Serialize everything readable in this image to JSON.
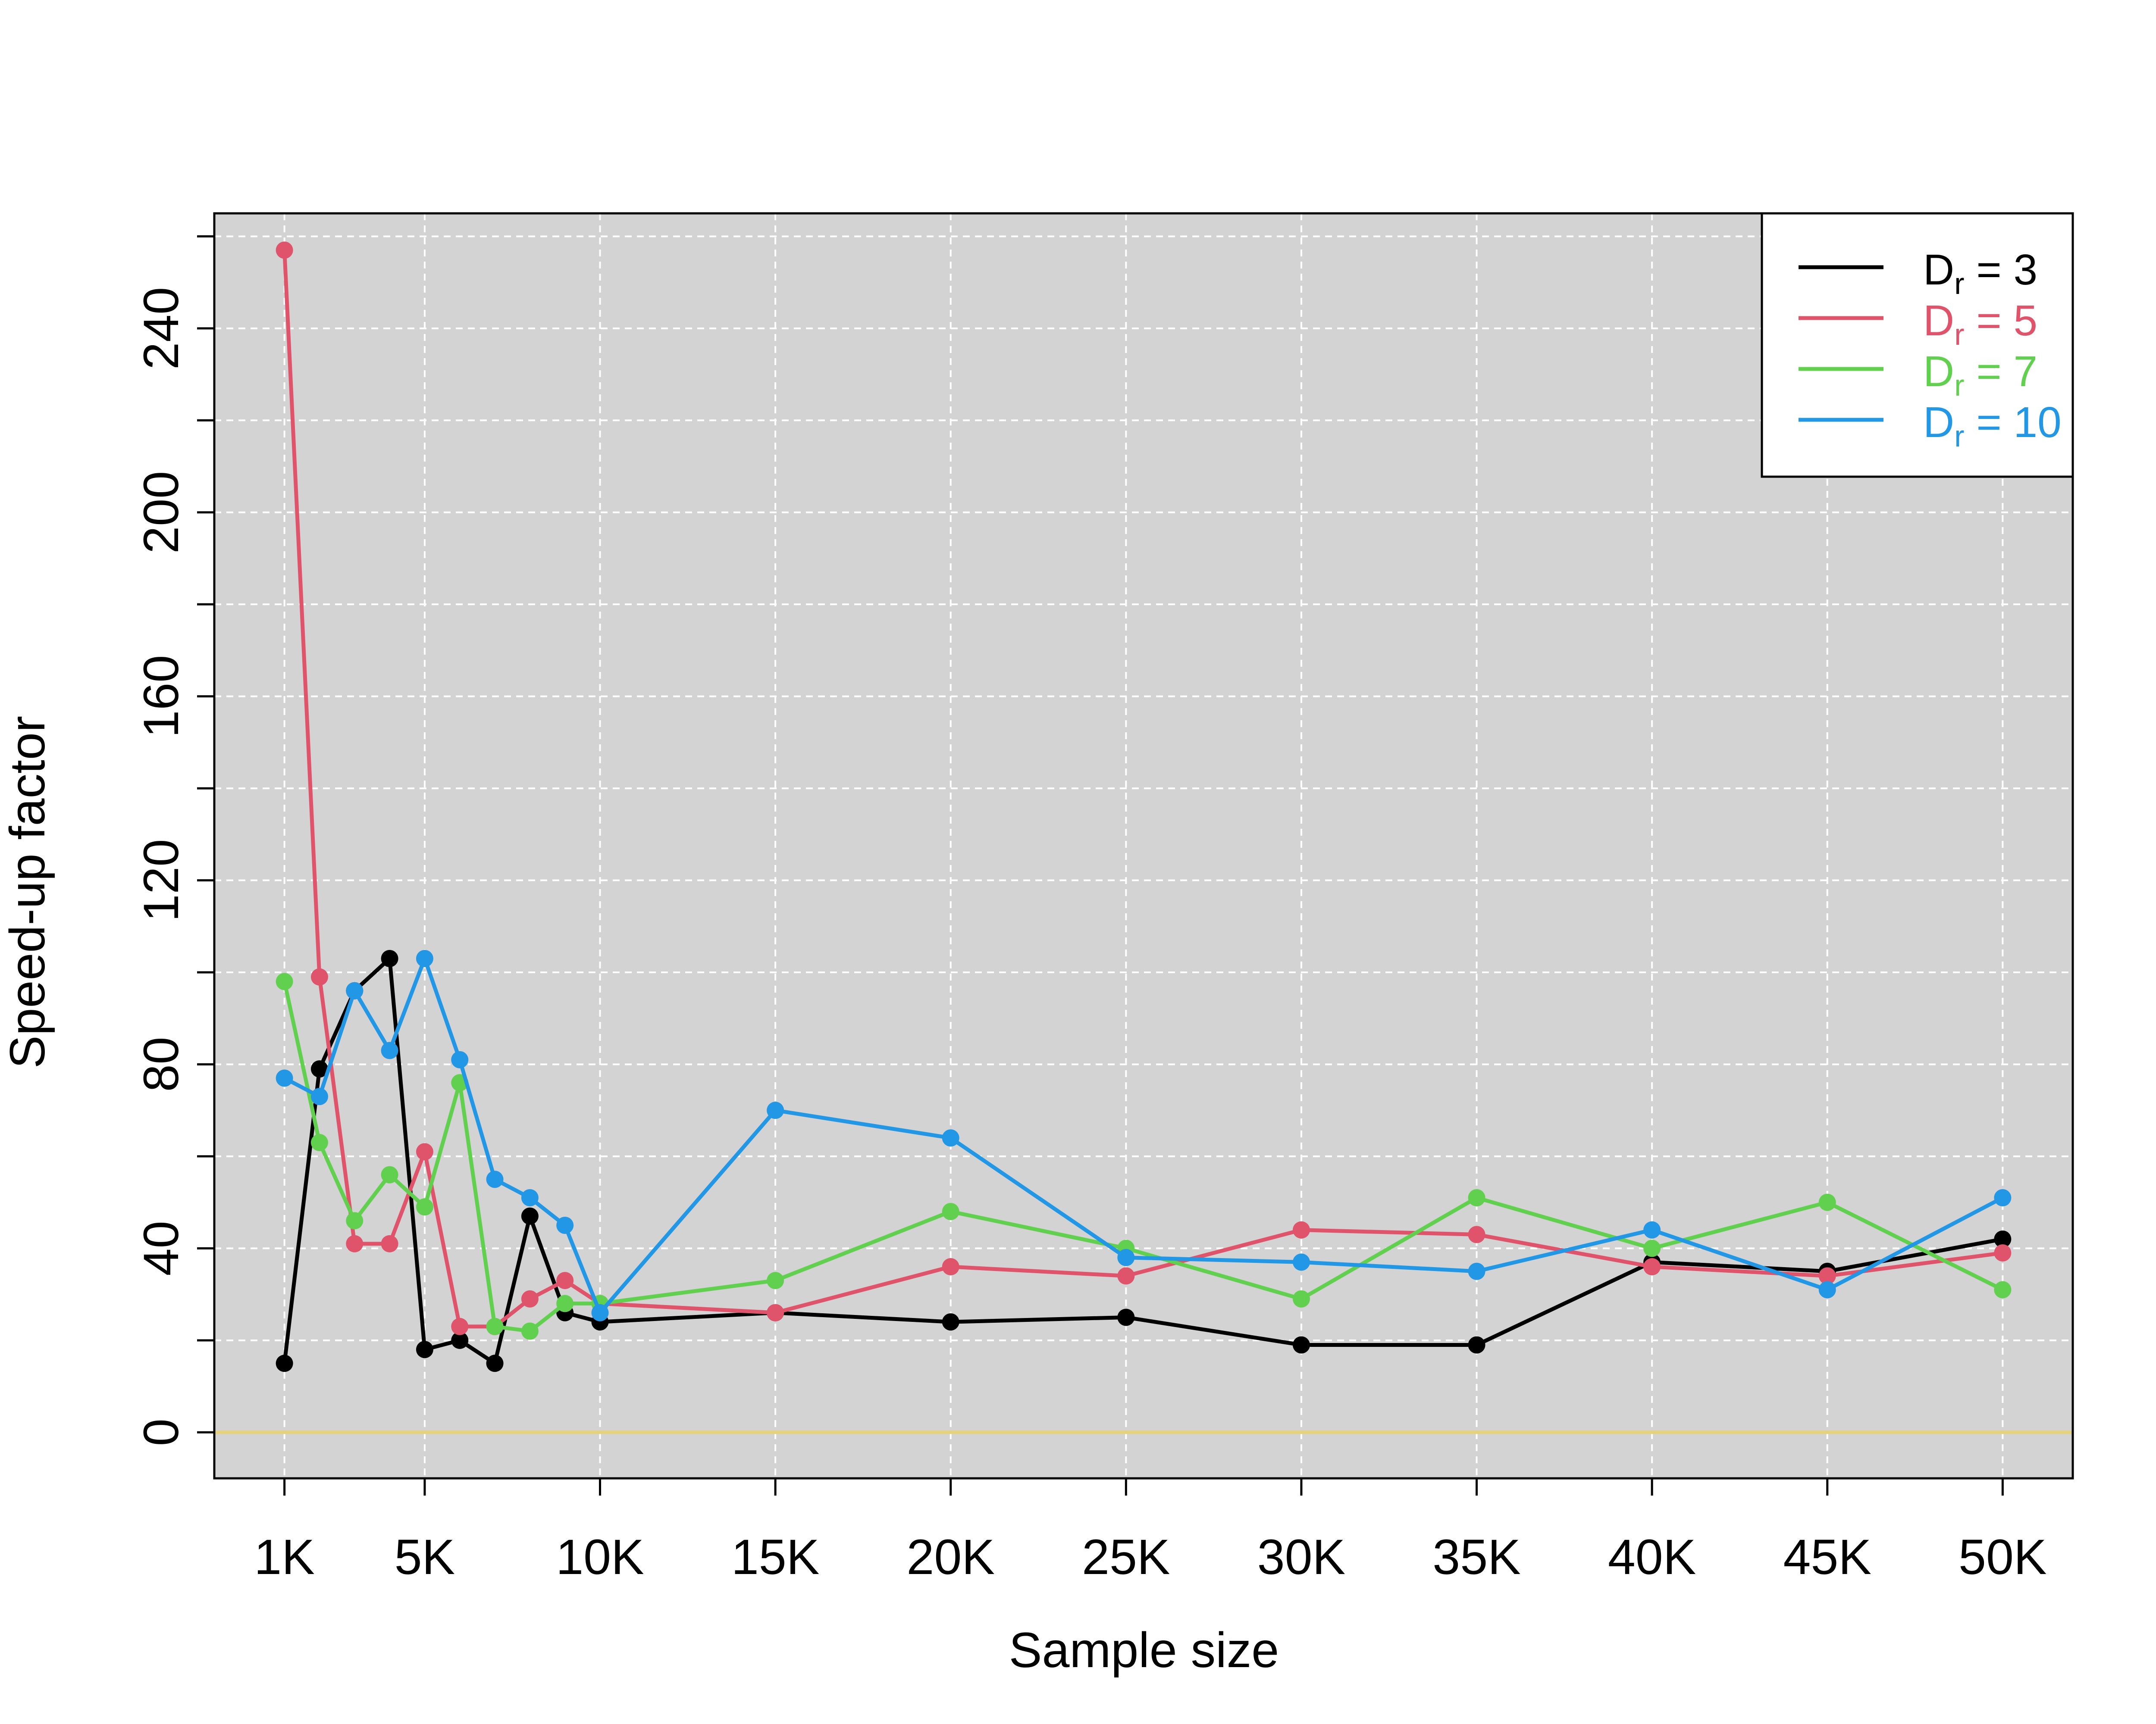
{
  "chart_data": {
    "type": "line",
    "xlabel": "Sample size",
    "ylabel": "Speed-up factor",
    "xlim": [
      -1000,
      52000
    ],
    "ylim": [
      -10,
      265
    ],
    "x_ticks": [
      1000,
      5000,
      10000,
      15000,
      20000,
      25000,
      30000,
      35000,
      40000,
      45000,
      50000
    ],
    "x_tick_labels": [
      "1K",
      "5K",
      "10K",
      "15K",
      "20K",
      "25K",
      "30K",
      "35K",
      "40K",
      "45K",
      "50K"
    ],
    "y_ticks": [
      0,
      20,
      40,
      60,
      80,
      100,
      120,
      140,
      160,
      180,
      200,
      220,
      240,
      260
    ],
    "y_tick_labels": [
      "0",
      "",
      "40",
      "",
      "80",
      "",
      "120",
      "",
      "160",
      "",
      "200",
      "",
      "240",
      ""
    ],
    "grid": true,
    "reference_line": {
      "y": 0,
      "color": "#E6D27A"
    },
    "legend_position": "top-right",
    "x": [
      1000,
      2000,
      3000,
      4000,
      5000,
      6000,
      7000,
      8000,
      9000,
      10000,
      15000,
      20000,
      25000,
      30000,
      35000,
      40000,
      45000,
      50000
    ],
    "series": [
      {
        "name": "3",
        "color": "#000000",
        "values": [
          15,
          79,
          96,
          103,
          18,
          20,
          15,
          47,
          26,
          24,
          26,
          24,
          25,
          19,
          19,
          37,
          35,
          42
        ]
      },
      {
        "name": "5",
        "color": "#DF536B",
        "values": [
          257,
          99,
          41,
          41,
          61,
          23,
          23,
          29,
          33,
          28,
          26,
          36,
          34,
          44,
          43,
          36,
          34,
          39
        ]
      },
      {
        "name": "7",
        "color": "#61D04F",
        "values": [
          98,
          63,
          46,
          56,
          49,
          76,
          23,
          22,
          28,
          28,
          33,
          48,
          40,
          29,
          51,
          40,
          50,
          31
        ]
      },
      {
        "name": "10",
        "color": "#2297E6",
        "values": [
          77,
          73,
          96,
          83,
          103,
          81,
          55,
          51,
          45,
          26,
          70,
          64,
          38,
          37,
          35,
          44,
          31,
          51
        ]
      }
    ],
    "legend_prefix": "D",
    "legend_subscript": "r",
    "legend_eq": " = "
  }
}
